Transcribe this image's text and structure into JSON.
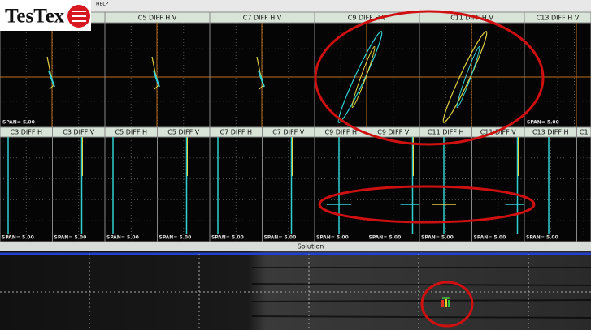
{
  "logo": "TesTex",
  "menu_label": "HELP",
  "top_panels": [
    "C5 DIFF H V",
    "C7 DIFF H V",
    "C9 DIFF H V",
    "C11 DIFF H V",
    "C13 DIFF H V"
  ],
  "mid_panels": [
    "C3 DIFF H",
    "C3 DIFF V",
    "C5 DIFF H",
    "C5 DIFF V",
    "C7 DIFF H",
    "C7 DIFF V",
    "C9 DIFF H",
    "C9 DIFF V",
    "C11 DIFF H",
    "C11 DIFF V",
    "C13 DIFF H",
    "C1"
  ],
  "span_label": "SPAN= 5.00",
  "solution_label": "Solution"
}
